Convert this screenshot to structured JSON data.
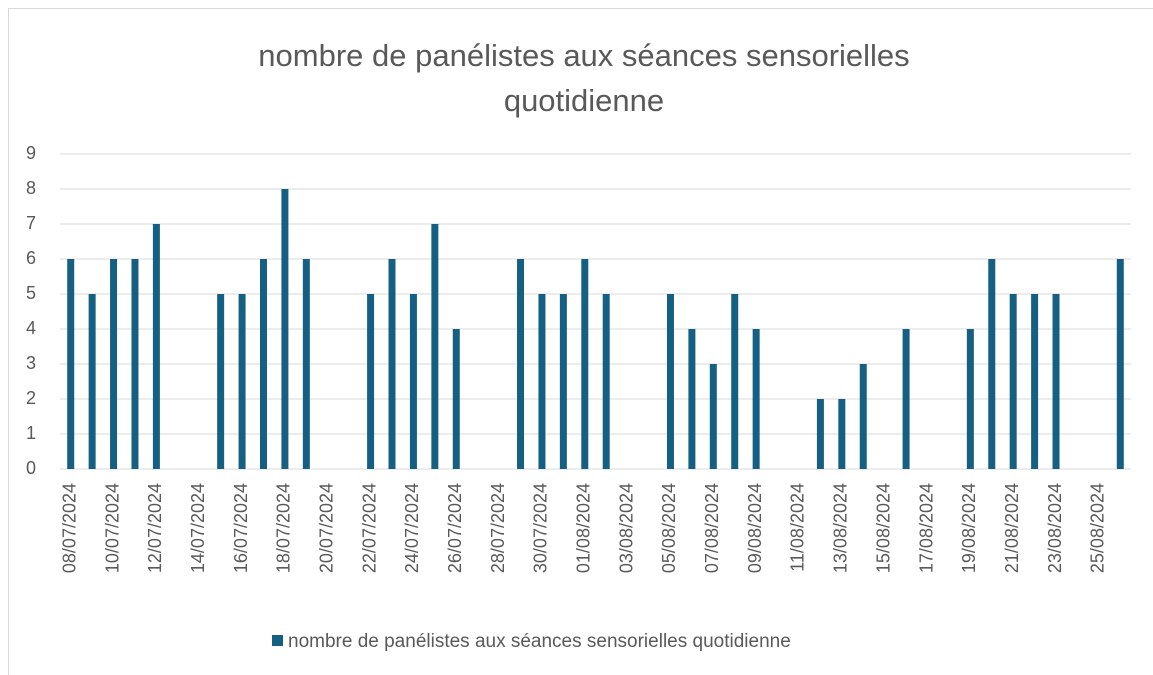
{
  "chart_data": {
    "type": "bar",
    "title": [
      "nombre de panélistes aux séances sensorielles",
      "quotidienne"
    ],
    "categories": [
      "08/07/2024",
      null,
      "10/07/2024",
      null,
      "12/07/2024",
      null,
      "14/07/2024",
      null,
      "16/07/2024",
      null,
      "18/07/2024",
      null,
      "20/07/2024",
      null,
      "22/07/2024",
      null,
      "24/07/2024",
      null,
      "26/07/2024",
      null,
      "28/07/2024",
      null,
      "30/07/2024",
      null,
      "01/08/2024",
      null,
      "03/08/2024",
      null,
      "05/08/2024",
      null,
      "07/08/2024",
      null,
      "09/08/2024",
      null,
      "11/08/2024",
      null,
      "13/08/2024",
      null,
      "15/08/2024",
      null,
      "17/08/2024",
      null,
      "19/08/2024",
      null,
      "21/08/2024",
      null,
      "23/08/2024",
      null,
      "25/08/2024",
      null
    ],
    "series": [
      {
        "name": "nombre de panélistes aux séances sensorielles quotidienne",
        "color": "#156082",
        "values": [
          6,
          5,
          6,
          6,
          7,
          null,
          null,
          5,
          5,
          6,
          8,
          6,
          null,
          null,
          5,
          6,
          5,
          7,
          4,
          null,
          null,
          6,
          5,
          5,
          6,
          5,
          null,
          null,
          5,
          4,
          3,
          5,
          4,
          null,
          null,
          2,
          2,
          3,
          null,
          4,
          null,
          null,
          4,
          6,
          5,
          5,
          5,
          null,
          null,
          6
        ]
      }
    ],
    "ylim": [
      0,
      9
    ],
    "yticks": [
      0,
      1,
      2,
      3,
      4,
      5,
      6,
      7,
      8,
      9
    ],
    "grid": true,
    "legend": "bottom"
  }
}
